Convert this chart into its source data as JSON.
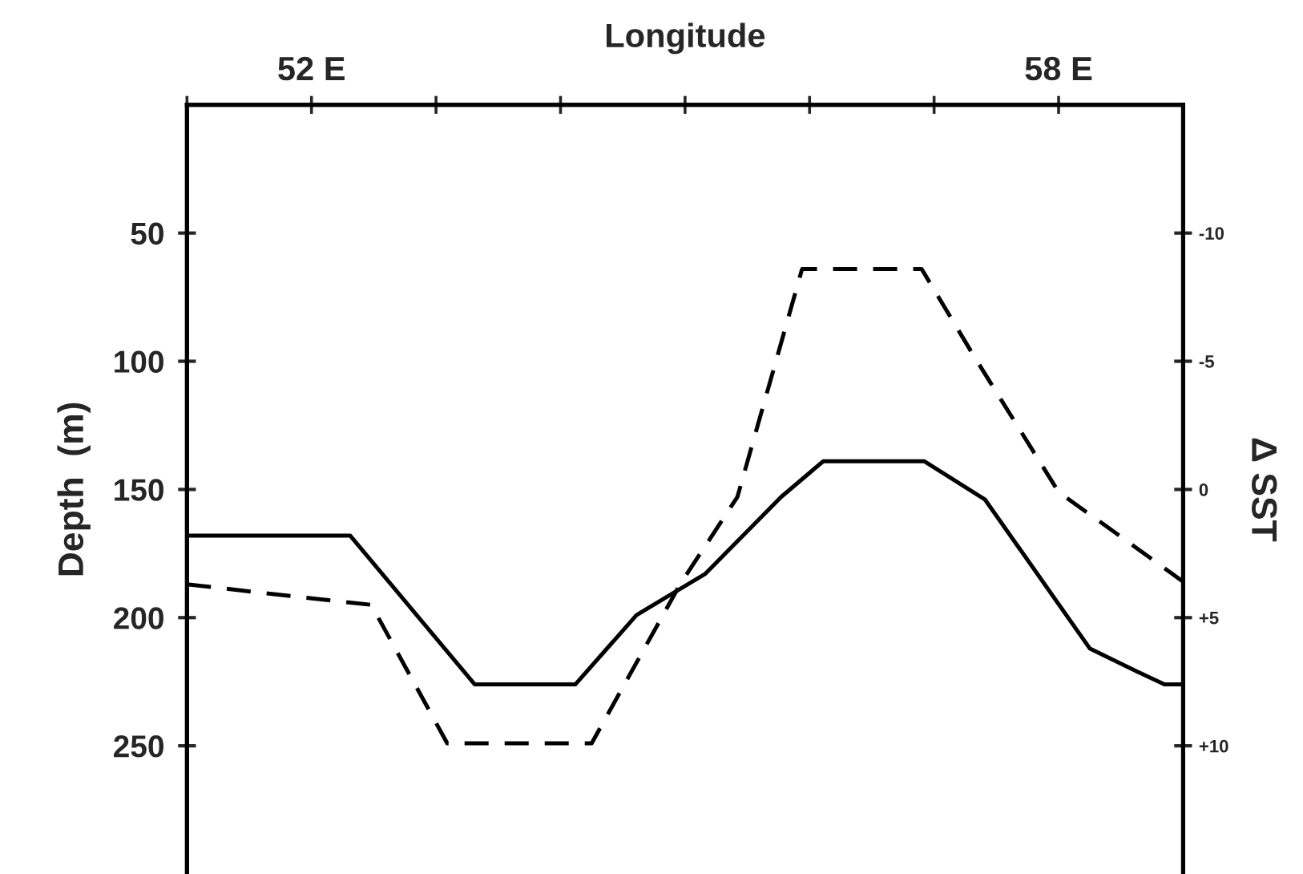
{
  "chart_data": {
    "type": "line",
    "xlabel": "Longitude",
    "ylabel": "Depth  (m)",
    "y2label": "Δ SST",
    "xlim": [
      51,
      59
    ],
    "xticks": [
      {
        "value": 51,
        "label": null
      },
      {
        "value": 52,
        "label": "52 E"
      },
      {
        "value": 53,
        "label": null
      },
      {
        "value": 54,
        "label": null
      },
      {
        "value": 55,
        "label": null
      },
      {
        "value": 56,
        "label": null
      },
      {
        "value": 57,
        "label": null
      },
      {
        "value": 58,
        "label": "58 E"
      }
    ],
    "ylim": [
      300,
      0
    ],
    "yticks": [
      50,
      100,
      150,
      200,
      250
    ],
    "y2lim": [
      15,
      -15
    ],
    "y2ticks": [
      {
        "value": -10,
        "label": "-10"
      },
      {
        "value": -5,
        "label": "-5"
      },
      0,
      {
        "value": 5,
        "label": "+5"
      },
      {
        "value": 10,
        "label": "+10"
      }
    ],
    "grid": false,
    "series": [
      {
        "color": "#000000",
        "line_style": "solid",
        "x": [
          51.0,
          52.31,
          53.31,
          54.12,
          54.61,
          55.16,
          55.77,
          56.11,
          56.92,
          57.41,
          58.25,
          58.63,
          58.85,
          59.0
        ],
        "values": [
          168,
          168,
          226,
          226,
          199,
          183,
          153,
          139,
          139,
          154,
          212,
          221,
          226,
          226
        ]
      },
      {
        "color": "#000000",
        "line_style": "dashed",
        "axis": "y2",
        "x": [
          51.0,
          51.91,
          52.48,
          53.09,
          54.25,
          54.96,
          55.42,
          55.94,
          56.9,
          57.32,
          58.0,
          58.63,
          59.0
        ],
        "values": [
          3.7,
          4.2,
          4.5,
          9.9,
          9.9,
          3.7,
          0.3,
          -8.6,
          -8.6,
          -5.2,
          0.1,
          2.3,
          3.6
        ]
      }
    ]
  }
}
